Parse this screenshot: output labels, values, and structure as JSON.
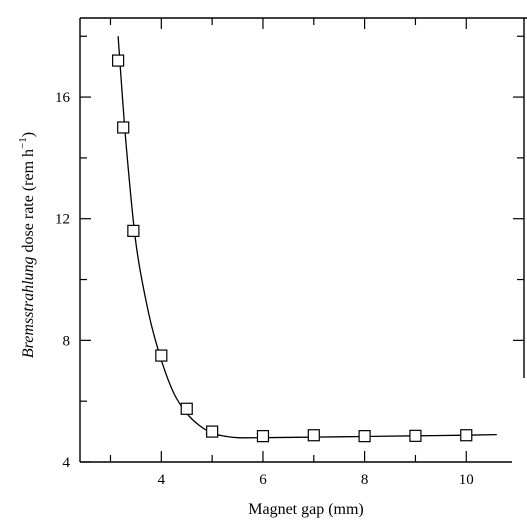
{
  "chart_data": {
    "type": "scatter",
    "xlabel": "Magnet gap (mm)",
    "ylabel": {
      "italic": "Bremsstrahlung",
      "rest": " dose  rate  (rem h",
      "sup": "−1",
      "close": ")"
    },
    "xlim": [
      2.4,
      10.9
    ],
    "ylim": [
      4,
      18.6
    ],
    "x_ticks_major": [
      4,
      6,
      8,
      10
    ],
    "x_ticks_minor": [
      3,
      5,
      7,
      9
    ],
    "y_ticks_major": [
      4,
      8,
      12,
      16
    ],
    "y_ticks_minor": [
      6,
      10,
      14,
      18
    ],
    "x_tick_labels": [
      "4",
      "6",
      "8",
      "10"
    ],
    "y_tick_labels": [
      "4",
      "8",
      "12",
      "16"
    ],
    "grid": false,
    "legend": "none",
    "markers": "open-square",
    "points": {
      "x": [
        3.15,
        3.25,
        3.45,
        4.0,
        4.5,
        5.0,
        6.0,
        7.0,
        8.0,
        9.0,
        10.0
      ],
      "y": [
        17.2,
        15.0,
        11.6,
        7.5,
        5.75,
        5.0,
        4.85,
        4.88,
        4.85,
        4.86,
        4.88
      ]
    },
    "fit_curve": {
      "x": [
        3.15,
        3.3,
        3.5,
        3.75,
        4.0,
        4.25,
        4.5,
        4.75,
        5.0,
        5.25,
        5.5,
        6.0,
        7.0,
        8.0,
        9.0,
        10.0,
        10.6
      ],
      "y": [
        18.0,
        14.6,
        11.2,
        8.9,
        7.35,
        6.25,
        5.6,
        5.2,
        4.95,
        4.85,
        4.8,
        4.8,
        4.82,
        4.84,
        4.86,
        4.88,
        4.9
      ]
    }
  }
}
